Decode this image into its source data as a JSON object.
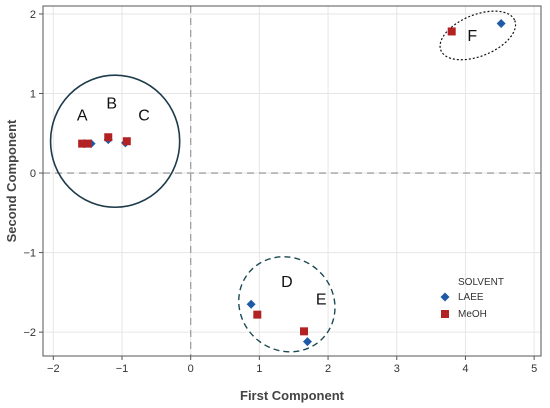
{
  "chart_data": {
    "type": "scatter",
    "xlabel": "First Component",
    "ylabel": "Second Component",
    "xlim": [
      -2.15,
      5.1
    ],
    "ylim": [
      -2.3,
      2.1
    ],
    "xticks": [
      -2,
      -1,
      0,
      1,
      2,
      3,
      4,
      5
    ],
    "yticks": [
      -2,
      -1,
      0,
      1,
      2
    ],
    "grid": true,
    "reference_lines": {
      "x": 0,
      "y": 0
    },
    "legend": {
      "title": "SOLVENT",
      "position": "bottom-right",
      "entries": [
        {
          "name": "LAEE",
          "marker": "diamond",
          "color": "#1F5AA6"
        },
        {
          "name": "MeOH",
          "marker": "square",
          "color": "#B22222"
        }
      ]
    },
    "series": [
      {
        "name": "LAEE",
        "marker": "diamond",
        "color": "#1F5AA6",
        "points": [
          {
            "x": -1.55,
            "y": 0.37
          },
          {
            "x": -1.45,
            "y": 0.37
          },
          {
            "x": -1.2,
            "y": 0.42
          },
          {
            "x": -0.95,
            "y": 0.38
          },
          {
            "x": 0.88,
            "y": -1.65
          },
          {
            "x": 1.7,
            "y": -2.12
          },
          {
            "x": 4.52,
            "y": 1.88
          }
        ]
      },
      {
        "name": "MeOH",
        "marker": "square",
        "color": "#B22222",
        "points": [
          {
            "x": -1.58,
            "y": 0.37
          },
          {
            "x": -1.5,
            "y": 0.37
          },
          {
            "x": -1.2,
            "y": 0.45
          },
          {
            "x": -0.93,
            "y": 0.4
          },
          {
            "x": 0.97,
            "y": -1.78
          },
          {
            "x": 1.65,
            "y": -1.99
          },
          {
            "x": 3.8,
            "y": 1.78
          }
        ]
      }
    ],
    "annotations": [
      {
        "text": "A",
        "x": -1.58,
        "y": 0.66
      },
      {
        "text": "B",
        "x": -1.15,
        "y": 0.81
      },
      {
        "text": "C",
        "x": -0.68,
        "y": 0.66
      },
      {
        "text": "D",
        "x": 1.4,
        "y": -1.43
      },
      {
        "text": "E",
        "x": 1.9,
        "y": -1.65
      },
      {
        "text": "F",
        "x": 4.1,
        "y": 1.66
      }
    ],
    "cluster_outlines": [
      {
        "shape": "circle",
        "style": "solid",
        "cx": -1.1,
        "cy": 0.4,
        "rx": 0.94,
        "ry": 0.83
      },
      {
        "shape": "ellipse",
        "style": "dashed",
        "cx": 1.4,
        "cy": -1.65,
        "rx": 0.72,
        "ry": 0.58,
        "rotate": 40
      },
      {
        "shape": "ellipse",
        "style": "dotted",
        "cx": 4.18,
        "cy": 1.73,
        "rx": 0.58,
        "ry": 0.26,
        "rotate": -22
      }
    ]
  }
}
